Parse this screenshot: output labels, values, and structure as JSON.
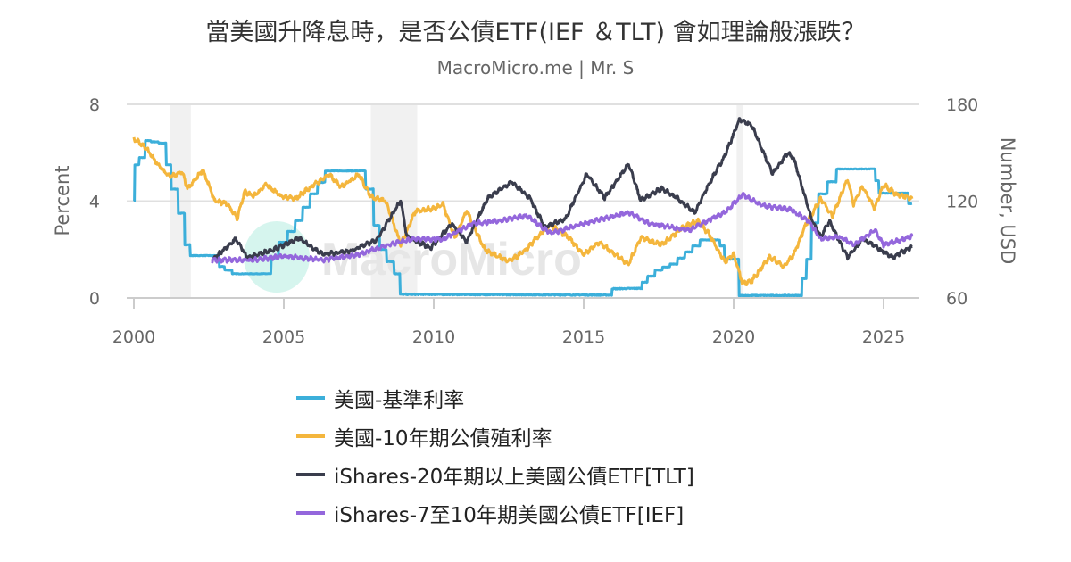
{
  "chart_data": {
    "type": "line",
    "title": "當美國升降息時，是否公債ETF(IEF ＆TLT) 會如理論般漲跌？",
    "subtitle": "MacroMicro.me | Mr. S",
    "watermark": "MacroMicro",
    "xlim": [
      2000,
      2025.95
    ],
    "x_ticks": [
      "2000",
      "2005",
      "2010",
      "2015",
      "2020",
      "2025"
    ],
    "y_left": {
      "label": "Percent",
      "range": [
        0,
        8
      ],
      "ticks": [
        "0",
        "4",
        "8"
      ]
    },
    "y_right": {
      "label": "Number, USD",
      "range": [
        60,
        180
      ],
      "ticks": [
        "60",
        "120",
        "180"
      ]
    },
    "grid": true,
    "legend_position": "bottom",
    "recessions": [
      [
        2001.2,
        2001.9
      ],
      [
        2007.9,
        2009.45
      ],
      [
        2020.1,
        2020.3
      ]
    ],
    "series": [
      {
        "name": "美國-基準利率",
        "axis": "left",
        "color": "#3cafda",
        "step": true,
        "points": [
          [
            2000,
            4.0
          ],
          [
            2000.05,
            5.5
          ],
          [
            2000.3,
            5.8
          ],
          [
            2000.45,
            6.5
          ],
          [
            2001.0,
            6.4
          ],
          [
            2001.15,
            5.5
          ],
          [
            2001.35,
            4.5
          ],
          [
            2001.6,
            3.5
          ],
          [
            2001.8,
            2.2
          ],
          [
            2001.95,
            1.75
          ],
          [
            2002.8,
            1.75
          ],
          [
            2002.9,
            1.3
          ],
          [
            2003.5,
            1.0
          ],
          [
            2004.45,
            1.0
          ],
          [
            2005.0,
            2.3
          ],
          [
            2005.5,
            3.2
          ],
          [
            2006.0,
            4.3
          ],
          [
            2006.5,
            5.25
          ],
          [
            2007.6,
            5.25
          ],
          [
            2007.9,
            4.5
          ],
          [
            2008.1,
            3.0
          ],
          [
            2008.3,
            2.0
          ],
          [
            2008.8,
            1.0
          ],
          [
            2008.95,
            0.15
          ],
          [
            2015.9,
            0.12
          ],
          [
            2016.0,
            0.38
          ],
          [
            2016.9,
            0.4
          ],
          [
            2017.0,
            0.65
          ],
          [
            2017.5,
            1.15
          ],
          [
            2018.0,
            1.4
          ],
          [
            2018.5,
            1.9
          ],
          [
            2018.95,
            2.4
          ],
          [
            2019.5,
            2.4
          ],
          [
            2019.6,
            2.15
          ],
          [
            2019.8,
            1.6
          ],
          [
            2020.15,
            1.6
          ],
          [
            2020.2,
            0.1
          ],
          [
            2022.2,
            0.1
          ],
          [
            2022.35,
            0.8
          ],
          [
            2022.5,
            1.6
          ],
          [
            2022.7,
            3.1
          ],
          [
            2023.0,
            4.3
          ],
          [
            2023.3,
            4.8
          ],
          [
            2023.55,
            5.33
          ],
          [
            2024.7,
            5.33
          ],
          [
            2024.75,
            4.85
          ],
          [
            2024.95,
            4.33
          ],
          [
            2025.7,
            4.33
          ],
          [
            2025.95,
            3.9
          ]
        ]
      },
      {
        "name": "美國-10年期公債殖利率",
        "axis": "left",
        "color": "#f4b63d",
        "points": [
          [
            2000,
            6.6
          ],
          [
            2000.4,
            6.2
          ],
          [
            2000.8,
            5.5
          ],
          [
            2001.2,
            5.0
          ],
          [
            2001.6,
            5.2
          ],
          [
            2001.8,
            4.5
          ],
          [
            2002.3,
            5.3
          ],
          [
            2002.7,
            4.0
          ],
          [
            2003.1,
            3.9
          ],
          [
            2003.45,
            3.3
          ],
          [
            2003.7,
            4.4
          ],
          [
            2004.0,
            4.2
          ],
          [
            2004.4,
            4.7
          ],
          [
            2004.9,
            4.2
          ],
          [
            2005.4,
            4.1
          ],
          [
            2005.8,
            4.5
          ],
          [
            2006.5,
            5.1
          ],
          [
            2006.9,
            4.6
          ],
          [
            2007.5,
            5.1
          ],
          [
            2007.9,
            4.2
          ],
          [
            2008.4,
            4.0
          ],
          [
            2008.9,
            2.2
          ],
          [
            2009.4,
            3.6
          ],
          [
            2010.0,
            3.7
          ],
          [
            2010.3,
            3.9
          ],
          [
            2010.7,
            2.5
          ],
          [
            2011.1,
            3.6
          ],
          [
            2011.7,
            2.0
          ],
          [
            2012.5,
            1.5
          ],
          [
            2013.0,
            1.9
          ],
          [
            2013.6,
            2.7
          ],
          [
            2013.9,
            3.0
          ],
          [
            2014.5,
            2.5
          ],
          [
            2015.0,
            1.8
          ],
          [
            2015.5,
            2.3
          ],
          [
            2016.5,
            1.4
          ],
          [
            2016.9,
            2.5
          ],
          [
            2017.6,
            2.2
          ],
          [
            2018.3,
            2.9
          ],
          [
            2018.8,
            3.2
          ],
          [
            2019.2,
            2.6
          ],
          [
            2019.7,
            1.5
          ],
          [
            2020.0,
            1.8
          ],
          [
            2020.3,
            0.6
          ],
          [
            2020.6,
            0.7
          ],
          [
            2021.2,
            1.7
          ],
          [
            2021.7,
            1.3
          ],
          [
            2022.0,
            1.8
          ],
          [
            2022.4,
            3.0
          ],
          [
            2022.9,
            4.1
          ],
          [
            2023.3,
            3.4
          ],
          [
            2023.8,
            4.9
          ],
          [
            2024.0,
            3.9
          ],
          [
            2024.3,
            4.6
          ],
          [
            2024.7,
            3.7
          ],
          [
            2025.0,
            4.7
          ],
          [
            2025.4,
            4.3
          ],
          [
            2025.95,
            4.1
          ]
        ]
      },
      {
        "name": "iShares-20年期以上美國公債ETF[TLT]",
        "axis": "right",
        "color": "#3a3d4d",
        "points": [
          [
            2002.6,
            83.5
          ],
          [
            2003.4,
            96.5
          ],
          [
            2003.8,
            85
          ],
          [
            2004.8,
            91
          ],
          [
            2005.5,
            97
          ],
          [
            2006.3,
            87
          ],
          [
            2007.2,
            89
          ],
          [
            2008.1,
            96
          ],
          [
            2008.9,
            120.5
          ],
          [
            2009.1,
            98
          ],
          [
            2009.9,
            91
          ],
          [
            2010.6,
            106
          ],
          [
            2011.1,
            95
          ],
          [
            2011.8,
            122
          ],
          [
            2012.6,
            132
          ],
          [
            2013.2,
            122
          ],
          [
            2013.7,
            104
          ],
          [
            2014.4,
            109
          ],
          [
            2015.1,
            137
          ],
          [
            2015.7,
            122
          ],
          [
            2016.5,
            143
          ],
          [
            2016.9,
            120.5
          ],
          [
            2017.6,
            128
          ],
          [
            2018.1,
            122
          ],
          [
            2018.7,
            113
          ],
          [
            2019.1,
            128
          ],
          [
            2019.7,
            148
          ],
          [
            2020.2,
            170.6
          ],
          [
            2020.6,
            167
          ],
          [
            2021.3,
            137
          ],
          [
            2021.8,
            150
          ],
          [
            2022.0,
            146.5
          ],
          [
            2022.6,
            109
          ],
          [
            2022.9,
            98
          ],
          [
            2023.2,
            107.6
          ],
          [
            2023.8,
            85
          ],
          [
            2024.3,
            96.5
          ],
          [
            2024.8,
            91
          ],
          [
            2025.3,
            85
          ],
          [
            2025.95,
            92
          ]
        ]
      },
      {
        "name": "iShares-7至10年期美國公債ETF[IEF]",
        "axis": "right",
        "color": "#9467dc",
        "points": [
          [
            2002.6,
            83.5
          ],
          [
            2004.0,
            83.5
          ],
          [
            2005.0,
            86
          ],
          [
            2006.3,
            83.5
          ],
          [
            2007.5,
            87
          ],
          [
            2008.5,
            93
          ],
          [
            2009.3,
            96.5
          ],
          [
            2010.3,
            96.5
          ],
          [
            2011.3,
            106
          ],
          [
            2012.1,
            107.6
          ],
          [
            2013.1,
            111
          ],
          [
            2013.9,
            100
          ],
          [
            2015.0,
            106
          ],
          [
            2016.5,
            113
          ],
          [
            2017.2,
            106
          ],
          [
            2018.5,
            102
          ],
          [
            2019.7,
            113
          ],
          [
            2020.3,
            124
          ],
          [
            2021.0,
            117
          ],
          [
            2021.9,
            115
          ],
          [
            2022.5,
            107.6
          ],
          [
            2022.9,
            96.5
          ],
          [
            2023.5,
            98
          ],
          [
            2024.0,
            93
          ],
          [
            2024.7,
            102
          ],
          [
            2025.0,
            93
          ],
          [
            2025.95,
            98
          ]
        ]
      }
    ]
  }
}
